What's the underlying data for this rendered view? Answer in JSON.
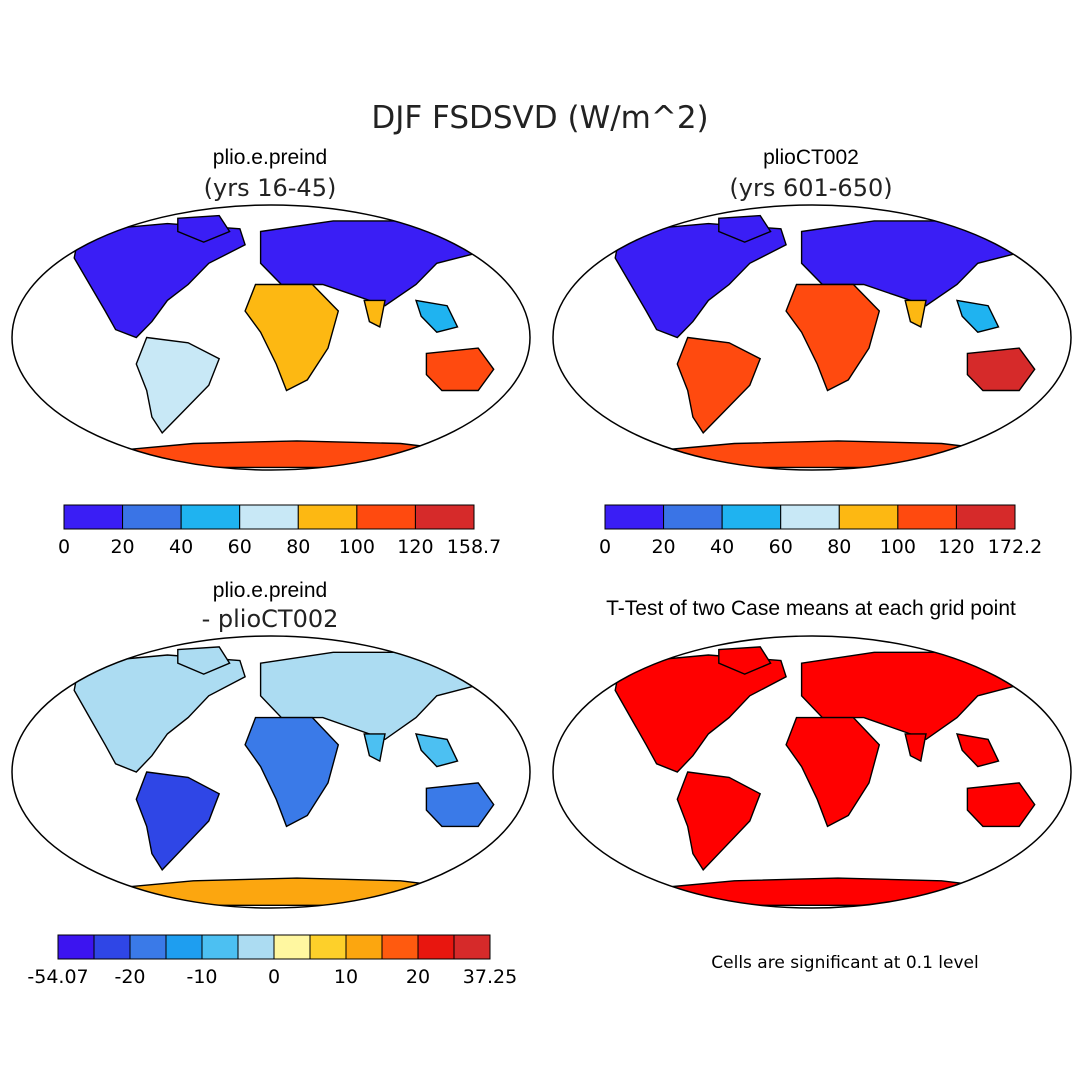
{
  "title": "DJF FSDSVD (W/m^2)",
  "panels": [
    {
      "id": "case1",
      "title": "plio.e.preind",
      "subtitle": "(yrs 16-45)",
      "colorbar": {
        "colors": [
          "#3a1ef5",
          "#3a74e6",
          "#1fb3f0",
          "#c8e8f6",
          "#fdb812",
          "#ff4a0f",
          "#d62a2a"
        ],
        "labels": [
          "0",
          "20",
          "40",
          "60",
          "80",
          "100",
          "120",
          "158.7"
        ]
      }
    },
    {
      "id": "case2",
      "title": "plioCT002",
      "subtitle": "(yrs 601-650)",
      "colorbar": {
        "colors": [
          "#3a1ef5",
          "#3a74e6",
          "#1fb3f0",
          "#c8e8f6",
          "#fdb812",
          "#ff4a0f",
          "#d62a2a"
        ],
        "labels": [
          "0",
          "20",
          "40",
          "60",
          "80",
          "100",
          "120",
          "172.2"
        ]
      }
    },
    {
      "id": "diff",
      "title": "plio.e.preind",
      "subtitle": "- plioCT002",
      "colorbar": {
        "colors": [
          "#3c14f0",
          "#2f46e6",
          "#3a7ae8",
          "#1e9ef0",
          "#4cc0f2",
          "#acdcf2",
          "#fff7a0",
          "#fdd02a",
          "#fca60f",
          "#ff5a0f",
          "#e8160f",
          "#d62a2a"
        ],
        "labels": [
          "-54.07",
          "-20",
          "-10",
          "0",
          "10",
          "20",
          "37.25"
        ]
      }
    },
    {
      "id": "ttest",
      "title": "T-Test of two Case means at each grid point",
      "note": "Cells are significant at 0.1 level",
      "colors": {
        "significant": "#ff0000"
      }
    }
  ]
}
